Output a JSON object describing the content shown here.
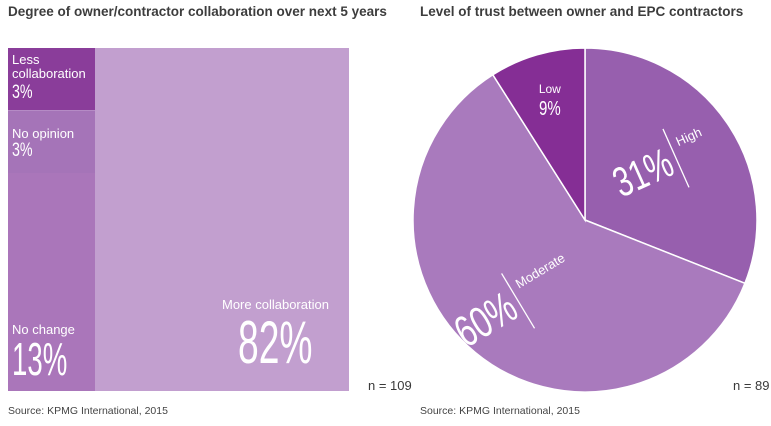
{
  "left": {
    "title": "Degree of owner/contractor collaboration over next 5 years",
    "source": "Source: KPMG International, 2015",
    "n_label": "n = 109"
  },
  "right": {
    "title": "Level of trust between owner and EPC contractors",
    "source": "Source: KPMG International, 2015",
    "n_label": "n = 89"
  },
  "chart_data": [
    {
      "type": "mosaic",
      "title": "Degree of owner/contractor collaboration over next 5 years",
      "categories": [
        "Less collaboration",
        "No opinion",
        "No change",
        "More collaboration"
      ],
      "values": [
        3,
        3,
        13,
        82
      ],
      "labels": [
        "3%",
        "3%",
        "13%",
        "82%"
      ],
      "colors": [
        "#8a3d9a",
        "#a574b8",
        "#aa76ba",
        "#c29fcf"
      ],
      "n": "n = 109"
    },
    {
      "type": "pie",
      "title": "Level of trust between owner and EPC contractors",
      "categories": [
        "High",
        "Moderate",
        "Low"
      ],
      "values": [
        31,
        60,
        9
      ],
      "labels": [
        "31%",
        "60%",
        "9%"
      ],
      "colors": [
        "#975fae",
        "#a97abd",
        "#852e95"
      ],
      "n": "n = 89"
    }
  ]
}
